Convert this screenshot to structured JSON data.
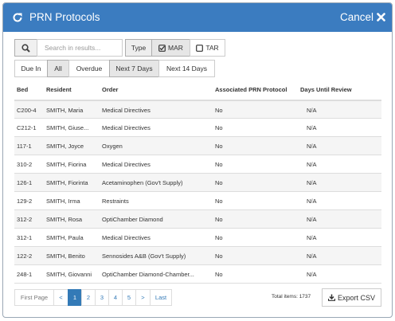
{
  "header": {
    "title": "PRN Protocols",
    "cancel": "Cancel"
  },
  "toolbar": {
    "search_placeholder": "Search in results...",
    "type_label": "Type",
    "type_options": [
      "MAR",
      "TAR"
    ],
    "filters": [
      "Due In",
      "All",
      "Overdue",
      "Next 7 Days",
      "Next 14 Days"
    ]
  },
  "table": {
    "columns": [
      "Bed",
      "Resident",
      "Order",
      "Associated PRN Protocol",
      "Days Until Review"
    ],
    "rows": [
      [
        "C200-4",
        "SMITH, Maria",
        "Medical Directives",
        "No",
        "N/A"
      ],
      [
        "C212-1",
        "SMITH, Giuse...",
        "Medical Directives",
        "No",
        "N/A"
      ],
      [
        "117-1",
        "SMITH, Joyce",
        "Oxygen",
        "No",
        "N/A"
      ],
      [
        "310-2",
        "SMITH, Fiorina",
        "Medical Directives",
        "No",
        "N/A"
      ],
      [
        "126-1",
        "SMITH, Fiorinta",
        "Acetaminophen (Gov't Supply)",
        "No",
        "N/A"
      ],
      [
        "129-2",
        "SMITH, Irma",
        "Restraints",
        "No",
        "N/A"
      ],
      [
        "312-2",
        "SMITH, Rosa",
        "OptiChamber Diamond",
        "No",
        "N/A"
      ],
      [
        "312-1",
        "SMITH, Paula",
        "Medical Directives",
        "No",
        "N/A"
      ],
      [
        "122-2",
        "SMITH, Benito",
        "Sennosides A&B (Gov't Supply)",
        "No",
        "N/A"
      ],
      [
        "248-1",
        "SMITH, Giovanni",
        "OptiChamber Diamond-Chamber...",
        "No",
        "N/A"
      ]
    ]
  },
  "pagination": {
    "first": "First Page",
    "prev": "<",
    "pages": [
      "1",
      "2",
      "3",
      "4",
      "5"
    ],
    "next": ">",
    "last": "Last"
  },
  "footer": {
    "total_label": "Total items:",
    "total": "1737",
    "export": "Export CSV"
  }
}
